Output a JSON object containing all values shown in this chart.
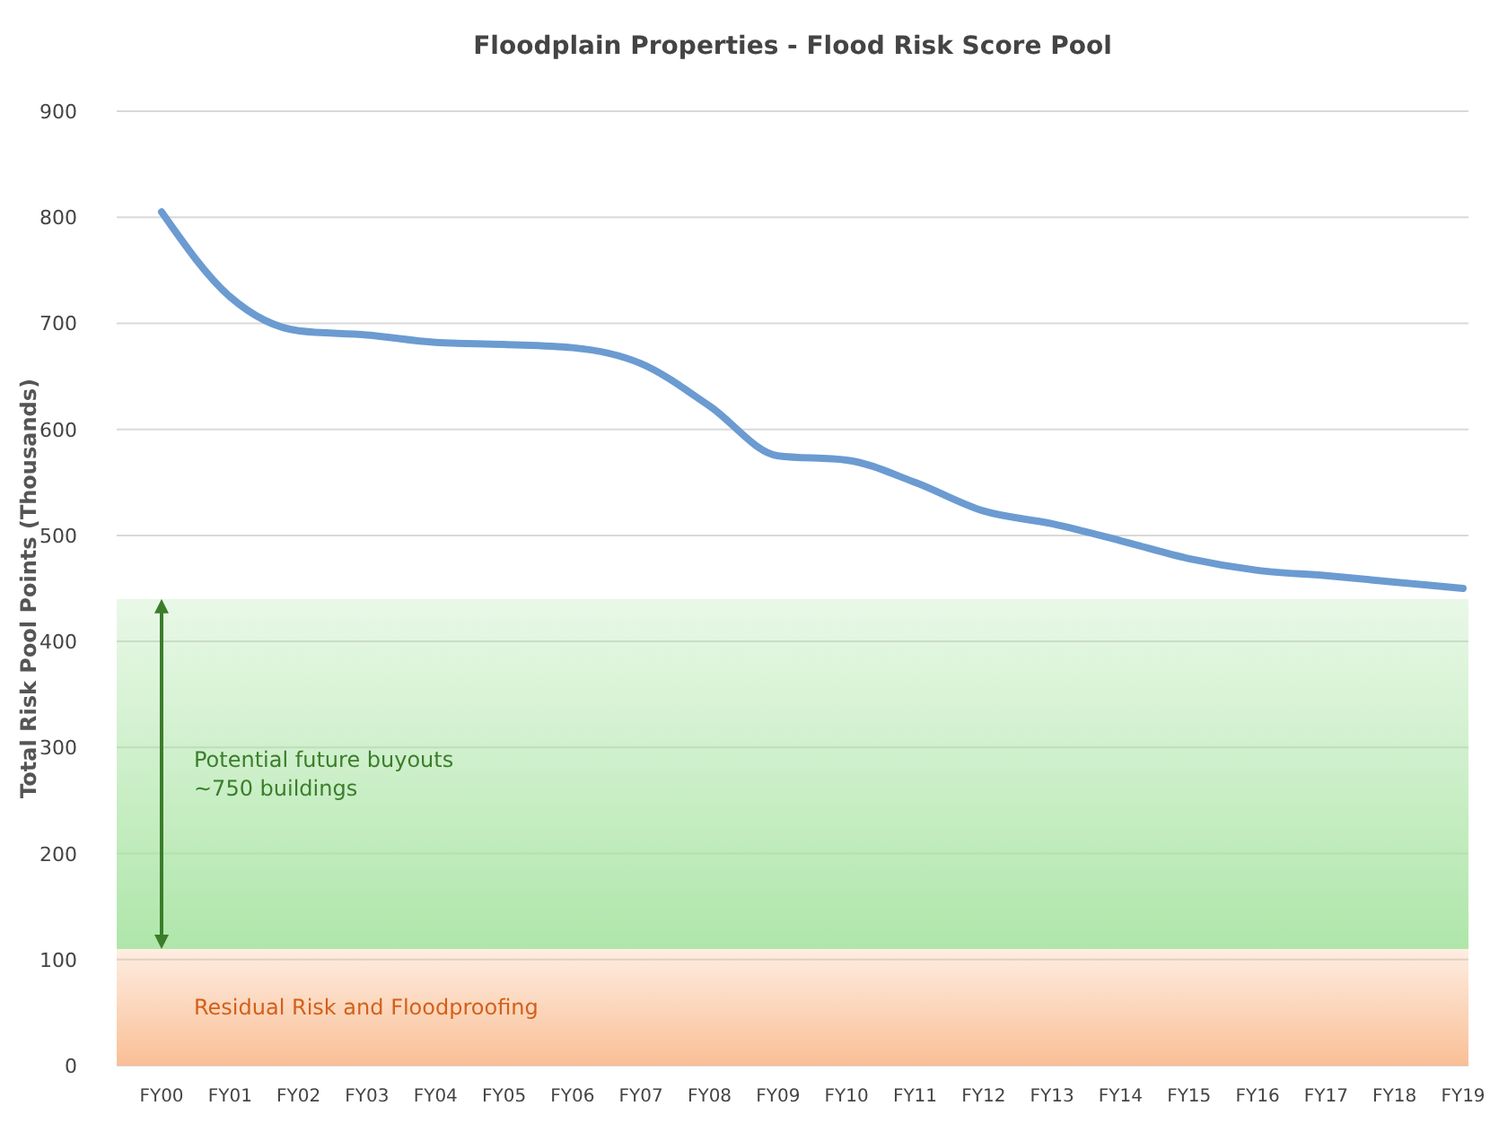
{
  "chart_data": {
    "type": "line",
    "title": "Floodplain Properties - Flood Risk Score Pool",
    "ylabel": "Total Risk Pool Points (Thousands)",
    "categories": [
      "FY00",
      "FY01",
      "FY02",
      "FY03",
      "FY04",
      "FY05",
      "FY06",
      "FY07",
      "FY08",
      "FY09",
      "FY10",
      "FY11",
      "FY12",
      "FY13",
      "FY14",
      "FY15",
      "FY16",
      "FY17",
      "FY18",
      "FY19"
    ],
    "series": [
      {
        "color": "#6b9bd1",
        "values": [
          805,
          725,
          693,
          689,
          682,
          680,
          677,
          662,
          622,
          575,
          571,
          550,
          523,
          511,
          495,
          478,
          467,
          462,
          456,
          450
        ]
      }
    ],
    "ylim": [
      0,
      900
    ],
    "yticks": [
      0,
      100,
      200,
      300,
      400,
      500,
      600,
      700,
      800,
      900
    ],
    "grid": "y",
    "marker": "none",
    "line_style": "solid",
    "bands": [
      {
        "axis": "y",
        "from": 0,
        "to": 110,
        "label": "Residual Risk and Floodproofing",
        "color": "#f9b88a"
      },
      {
        "axis": "y",
        "from": 110,
        "to": 440,
        "label": "Potential future buyouts\n~750 buildings",
        "color": "#a6e3a0"
      }
    ]
  }
}
